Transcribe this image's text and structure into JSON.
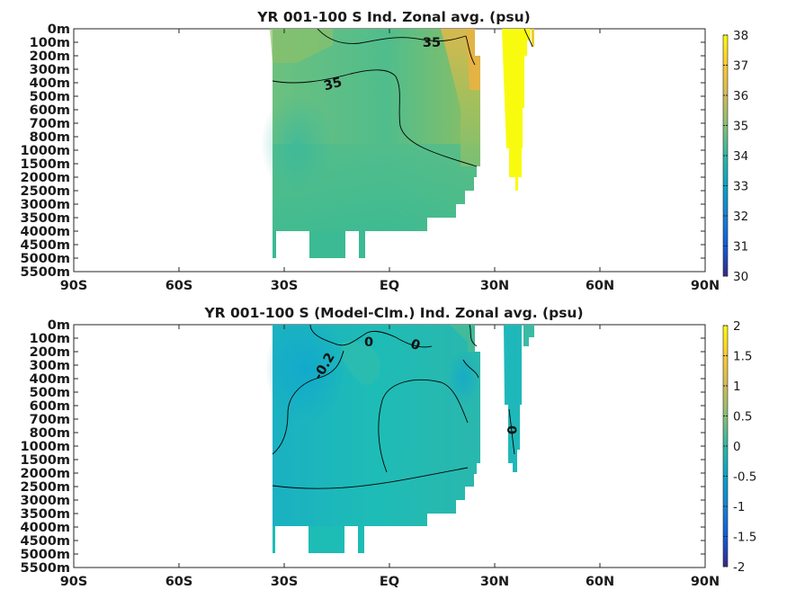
{
  "chart_data": [
    {
      "type": "heatmap",
      "title": "YR 001-100 S Ind. Zonal avg. (psu)",
      "x_ticks": [
        "90S",
        "60S",
        "30S",
        "EQ",
        "30N",
        "60N",
        "90N"
      ],
      "x_range": [
        -90,
        90
      ],
      "y_ticks": [
        "0m",
        "100m",
        "200m",
        "300m",
        "400m",
        "500m",
        "600m",
        "700m",
        "800m",
        "1000m",
        "1500m",
        "2000m",
        "2500m",
        "3000m",
        "3500m",
        "4000m",
        "4500m",
        "5000m",
        "5500m"
      ],
      "colorbar": {
        "min": 30,
        "max": 38,
        "ticks": [
          "38",
          "37",
          "36",
          "35",
          "34",
          "33",
          "32",
          "31",
          "30"
        ]
      },
      "contour_labels": [
        "35",
        "35"
      ],
      "values_summary": {
        "typical_deep": 34.7,
        "surface_subtropics": 35.3,
        "northern_indian_max": 36.3,
        "red_sea_marginal": 38
      },
      "grid": false
    },
    {
      "type": "heatmap",
      "title": "YR 001-100 S (Model-Clm.) Ind. Zonal avg. (psu)",
      "x_ticks": [
        "90S",
        "60S",
        "30S",
        "EQ",
        "30N",
        "60N",
        "90N"
      ],
      "x_range": [
        -90,
        90
      ],
      "y_ticks": [
        "0m",
        "100m",
        "200m",
        "300m",
        "400m",
        "500m",
        "600m",
        "700m",
        "800m",
        "1000m",
        "1500m",
        "2000m",
        "2500m",
        "3000m",
        "3500m",
        "4000m",
        "4500m",
        "5000m",
        "5500m"
      ],
      "colorbar": {
        "min": -2,
        "max": 2,
        "ticks": [
          "2",
          "1.5",
          "1",
          "0.5",
          "0",
          "-0.5",
          "-1",
          "-1.5",
          "-2"
        ]
      },
      "contour_labels": [
        "0",
        "0",
        "-0.2",
        "0"
      ],
      "values_summary": {
        "typical": 0,
        "upper_southern": -0.25,
        "northern_surface_max": 0.6
      },
      "grid": false
    }
  ],
  "colors": {
    "viridis_low": "#352a87",
    "viridis_mid": "#1eb6b0",
    "viridis_high": "#f9fb0e"
  }
}
